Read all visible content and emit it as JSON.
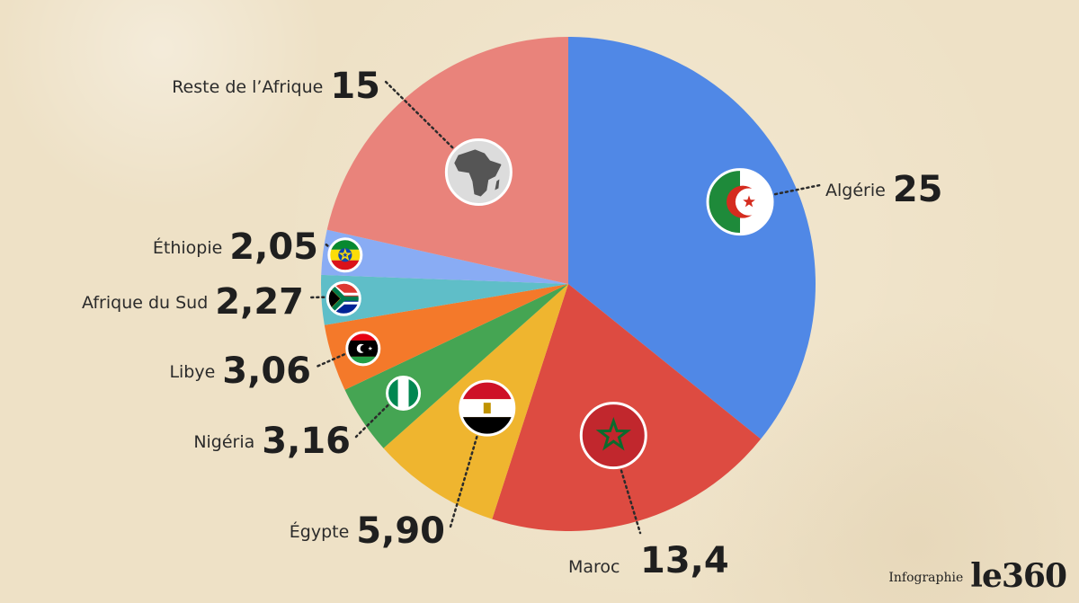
{
  "chart_data": {
    "type": "pie",
    "unit_decimal_separator": ",",
    "slices": [
      {
        "label": "Algérie",
        "value": 25,
        "display": "25",
        "color": "#5088e6",
        "icon": "flag-algeria"
      },
      {
        "label": "Maroc",
        "value": 13.4,
        "display": "13,4",
        "color": "#dd4b41",
        "icon": "flag-morocco"
      },
      {
        "label": "Égypte",
        "value": 5.9,
        "display": "5,90",
        "color": "#efb52f",
        "icon": "flag-egypt"
      },
      {
        "label": "Nigéria",
        "value": 3.16,
        "display": "3,16",
        "color": "#45a553",
        "icon": "flag-nigeria"
      },
      {
        "label": "Libye",
        "value": 3.06,
        "display": "3,06",
        "color": "#f4792a",
        "icon": "flag-libya"
      },
      {
        "label": "Afrique du Sud",
        "value": 2.27,
        "display": "2,27",
        "color": "#5fbec8",
        "icon": "flag-south-africa"
      },
      {
        "label": "Éthiopie",
        "value": 2.05,
        "display": "2,05",
        "color": "#89acf4",
        "icon": "flag-ethiopia"
      },
      {
        "label": "Reste de l’Afrique",
        "value": 15,
        "display": "15",
        "color": "#e9837b",
        "icon": "africa-map-icon"
      }
    ]
  },
  "credit": {
    "label": "Infographie",
    "logo": "le360"
  }
}
